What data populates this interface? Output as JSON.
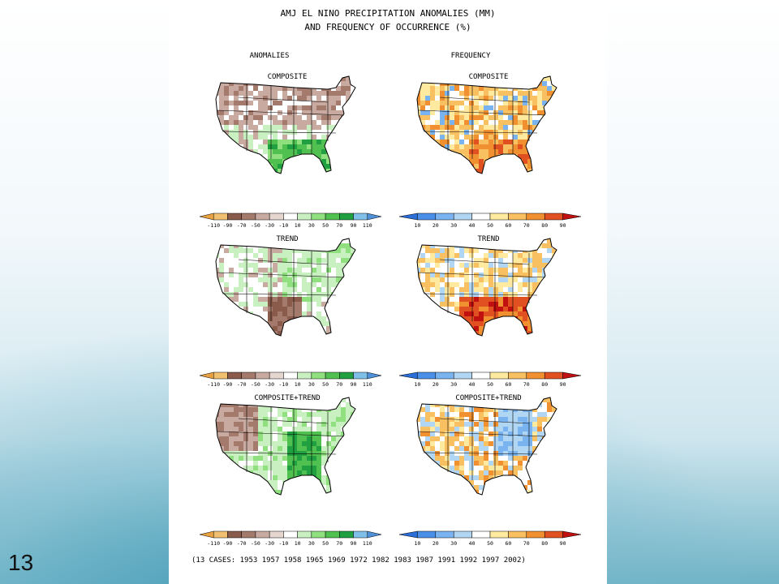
{
  "slide": {
    "number": "13"
  },
  "title": {
    "line1": "AMJ EL NINO PRECIPITATION ANOMALIES (MM)",
    "line2": "AND FREQUENCY OF OCCURRENCE (%)"
  },
  "columns": {
    "left": "ANOMALIES",
    "right": "FREQUENCY"
  },
  "rows": [
    {
      "label": "COMPOSITE"
    },
    {
      "label": "TREND"
    },
    {
      "label": "COMPOSITE+TREND"
    }
  ],
  "colorbars": {
    "anomaly": {
      "ticks": [
        "-110",
        "-90",
        "-70",
        "-50",
        "-30",
        "-10",
        "10",
        "30",
        "50",
        "70",
        "90",
        "110"
      ],
      "colors": [
        "#e8a040",
        "#f0c070",
        "#8a5a4a",
        "#a47a6c",
        "#c8aaa0",
        "#e6d6d0",
        "#ffffff",
        "#c8f0c0",
        "#90e080",
        "#50c050",
        "#20a040",
        "#80c0e8",
        "#5090d8"
      ]
    },
    "frequency": {
      "ticks": [
        "10",
        "20",
        "30",
        "40",
        "50",
        "60",
        "70",
        "80",
        "90"
      ],
      "colors": [
        "#2a6ed8",
        "#4a90e8",
        "#7ab4f0",
        "#b0d6f4",
        "#ffffff",
        "#ffeaa0",
        "#f8c060",
        "#f09030",
        "#e05020",
        "#c01010"
      ]
    }
  },
  "cases": "(13 CASES:  1953 1957 1958 1965 1969 1972 1982 1983 1987 1991 1992 1997 2002)",
  "chart_data": {
    "type": "heatmap",
    "title": "AMJ EL NINO PRECIPITATION ANOMALIES (MM) AND FREQUENCY OF OCCURRENCE (%)",
    "panels": [
      {
        "column": "ANOMALIES",
        "row": "COMPOSITE",
        "units": "mm",
        "pattern": "dry north, wet Gulf Coast/southern plains"
      },
      {
        "column": "FREQUENCY",
        "row": "COMPOSITE",
        "units": "%",
        "pattern": "mostly 60-80% with high frequency in south"
      },
      {
        "column": "ANOMALIES",
        "row": "TREND",
        "units": "mm",
        "pattern": "wet north/east, dry Texas/Louisiana"
      },
      {
        "column": "FREQUENCY",
        "row": "TREND",
        "units": "%",
        "pattern": "high frequency in south-central, Gulf Coast"
      },
      {
        "column": "ANOMALIES",
        "row": "COMPOSITE+TREND",
        "units": "mm",
        "pattern": "widespread wet, dry northwest"
      },
      {
        "column": "FREQUENCY",
        "row": "COMPOSITE+TREND",
        "units": "%",
        "pattern": "mixed low and high frequency"
      }
    ],
    "anomaly_levels": [
      -110,
      -90,
      -70,
      -50,
      -30,
      -10,
      10,
      30,
      50,
      70,
      90,
      110
    ],
    "frequency_levels": [
      10,
      20,
      30,
      40,
      50,
      60,
      70,
      80,
      90
    ],
    "cases": [
      1953,
      1957,
      1958,
      1965,
      1969,
      1972,
      1982,
      1983,
      1987,
      1991,
      1992,
      1997,
      2002
    ]
  }
}
